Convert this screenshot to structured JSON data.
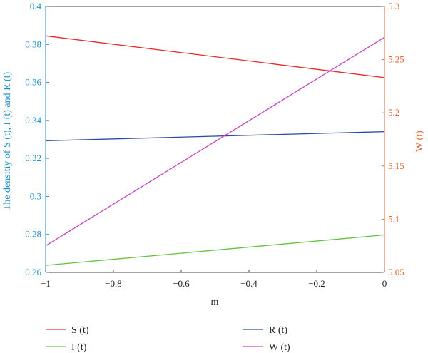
{
  "chart_data": {
    "type": "line",
    "x": [
      -1,
      0
    ],
    "xlabel": "m",
    "xlim": [
      -1,
      0
    ],
    "xticks": [
      "−1",
      "−0.8",
      "−0.6",
      "−0.4",
      "−0.2",
      "0"
    ],
    "xtick_values": [
      -1,
      -0.8,
      -0.6,
      -0.4,
      -0.2,
      0
    ],
    "left_axis": {
      "label": "The densitiy of S (t), I (t) and R (t)",
      "lim": [
        0.26,
        0.4
      ],
      "ticks": [
        "0.26",
        "0.28",
        "0.3",
        "0.32",
        "0.34",
        "0.36",
        "0.38",
        "0.4"
      ],
      "tick_values": [
        0.26,
        0.28,
        0.3,
        0.32,
        0.34,
        0.36,
        0.38,
        0.4
      ],
      "color": "#1f8fc9"
    },
    "right_axis": {
      "label": "W (t)",
      "lim": [
        5.05,
        5.3
      ],
      "ticks": [
        "5.05",
        "5.1",
        "5.15",
        "5.2",
        "5.25",
        "5.3"
      ],
      "tick_values": [
        5.05,
        5.1,
        5.15,
        5.2,
        5.25,
        5.3
      ],
      "color": "#e8632e"
    },
    "series": [
      {
        "name": "S (t)",
        "axis": "left",
        "color": "#e8282b",
        "values": [
          0.3845,
          0.3625
        ]
      },
      {
        "name": "I (t)",
        "axis": "left",
        "color": "#66c23e",
        "values": [
          0.2637,
          0.2797
        ]
      },
      {
        "name": "R (t)",
        "axis": "left",
        "color": "#2a4aa6",
        "values": [
          0.3293,
          0.3341
        ]
      },
      {
        "name": "W (t)",
        "axis": "right",
        "color": "#c445c0",
        "values": [
          5.075,
          5.271
        ]
      }
    ],
    "grid": false,
    "legend_position": "bottom"
  }
}
